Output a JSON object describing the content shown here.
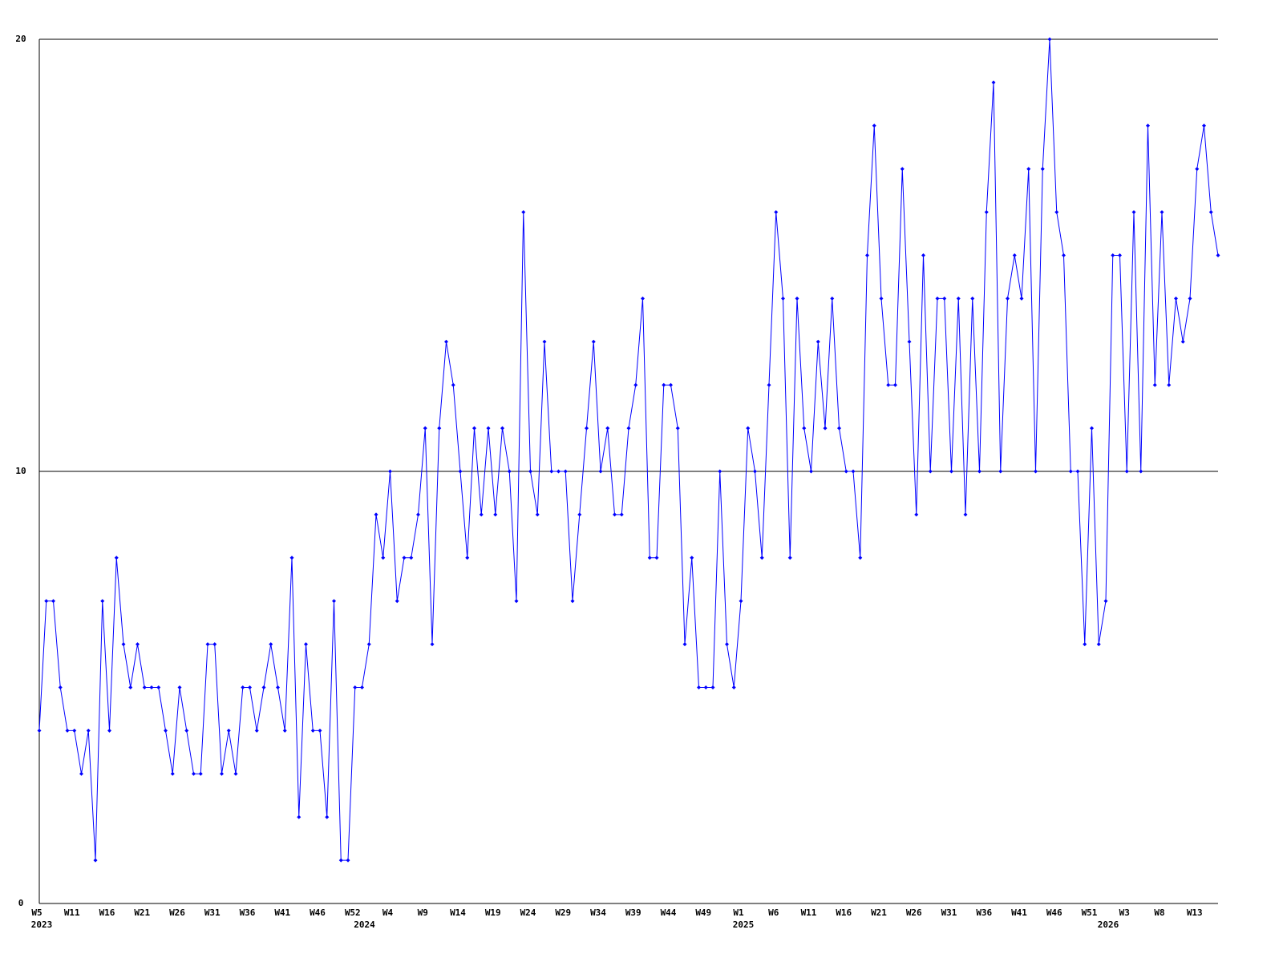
{
  "chart_data": {
    "type": "line",
    "categories": [
      "W5",
      null,
      null,
      null,
      null,
      "W11",
      null,
      null,
      null,
      null,
      "W16",
      null,
      null,
      null,
      null,
      "W21",
      null,
      null,
      null,
      null,
      "W26",
      null,
      null,
      null,
      null,
      "W31",
      null,
      null,
      null,
      null,
      "W36",
      null,
      null,
      null,
      null,
      "W41",
      null,
      null,
      null,
      null,
      "W46",
      null,
      null,
      null,
      null,
      "W52",
      null,
      null,
      null,
      null,
      "W4",
      null,
      null,
      null,
      null,
      "W9",
      null,
      null,
      null,
      null,
      "W14",
      null,
      null,
      null,
      null,
      "W19",
      null,
      null,
      null,
      null,
      "W24",
      null,
      null,
      null,
      null,
      "W29",
      null,
      null,
      null,
      null,
      "W34",
      null,
      null,
      null,
      null,
      "W39",
      null,
      null,
      null,
      null,
      "W44",
      null,
      null,
      null,
      null,
      "W49",
      null,
      null,
      null,
      null,
      "W1",
      null,
      null,
      null,
      null,
      "W6",
      null,
      null,
      null,
      null,
      "W11",
      null,
      null,
      null,
      null,
      "W16",
      null,
      null,
      null,
      null,
      "W21",
      null,
      null,
      null,
      null,
      "W26",
      null,
      null,
      null,
      null,
      "W31",
      null,
      null,
      null,
      null,
      "W36",
      null,
      null,
      null,
      null,
      "W41",
      null,
      null,
      null,
      null,
      "W46",
      null,
      null,
      null,
      null,
      "W51",
      null,
      null,
      null,
      null,
      "W3",
      null,
      null,
      null,
      null,
      "W8",
      null,
      null,
      null,
      null,
      "W13",
      null,
      null,
      null
    ],
    "category_years": [
      "2023",
      null,
      null,
      null,
      null,
      null,
      null,
      null,
      null,
      null,
      null,
      null,
      null,
      null,
      null,
      null,
      null,
      null,
      null,
      null,
      null,
      null,
      null,
      null,
      null,
      null,
      null,
      null,
      null,
      null,
      null,
      null,
      null,
      null,
      null,
      null,
      null,
      null,
      null,
      null,
      null,
      null,
      null,
      null,
      null,
      null,
      "2024",
      null,
      null,
      null,
      null,
      null,
      null,
      null,
      null,
      null,
      null,
      null,
      null,
      null,
      null,
      null,
      null,
      null,
      null,
      null,
      null,
      null,
      null,
      null,
      null,
      null,
      null,
      null,
      null,
      null,
      null,
      null,
      null,
      null,
      null,
      null,
      null,
      null,
      null,
      null,
      null,
      null,
      null,
      null,
      null,
      null,
      null,
      null,
      null,
      null,
      null,
      null,
      null,
      null,
      "2025",
      null,
      null,
      null,
      null,
      null,
      null,
      null,
      null,
      null,
      null,
      null,
      null,
      null,
      null,
      null,
      null,
      null,
      null,
      null,
      null,
      null,
      null,
      null,
      null,
      null,
      null,
      null,
      null,
      null,
      null,
      null,
      null,
      null,
      null,
      null,
      null,
      null,
      null,
      null,
      null,
      null,
      null,
      null,
      null,
      null,
      null,
      null,
      null,
      null,
      null,
      null,
      "2026",
      null,
      null,
      null,
      null,
      null,
      null,
      null,
      null,
      null,
      null,
      null,
      null,
      null,
      null,
      null,
      null
    ],
    "series": [
      {
        "color": "#0000ff",
        "values": [
          4,
          7,
          7,
          5,
          4,
          4,
          3,
          4,
          1,
          7,
          4,
          8,
          6,
          5,
          6,
          5,
          5,
          5,
          4,
          3,
          5,
          4,
          3,
          3,
          6,
          6,
          3,
          4,
          3,
          5,
          5,
          4,
          5,
          6,
          5,
          4,
          8,
          2,
          6,
          4,
          4,
          2,
          7,
          1,
          1,
          5,
          5,
          6,
          9,
          8,
          10,
          7,
          8,
          8,
          9,
          11,
          6,
          11,
          13,
          12,
          10,
          8,
          11,
          9,
          11,
          9,
          11,
          10,
          7,
          16,
          10,
          9,
          13,
          10,
          10,
          10,
          7,
          9,
          11,
          13,
          10,
          11,
          9,
          9,
          11,
          12,
          14,
          8,
          8,
          12,
          12,
          11,
          6,
          8,
          5,
          5,
          5,
          10,
          6,
          5,
          7,
          11,
          10,
          8,
          12,
          16,
          14,
          8,
          14,
          11,
          10,
          13,
          11,
          14,
          11,
          10,
          10,
          8,
          15,
          18,
          14,
          12,
          12,
          17,
          13,
          9,
          15,
          10,
          14,
          14,
          10,
          14,
          9,
          14,
          10,
          16,
          19,
          10,
          14,
          15,
          14,
          17,
          10,
          17,
          20,
          16,
          15,
          10,
          10,
          6,
          11,
          6,
          7,
          15,
          15,
          10,
          16,
          10,
          18,
          12,
          16,
          12,
          14,
          13,
          14,
          17,
          18,
          16,
          15
        ]
      }
    ],
    "ylim": [
      0,
      20
    ],
    "yticks": [
      0,
      10,
      20
    ],
    "grid": true
  }
}
